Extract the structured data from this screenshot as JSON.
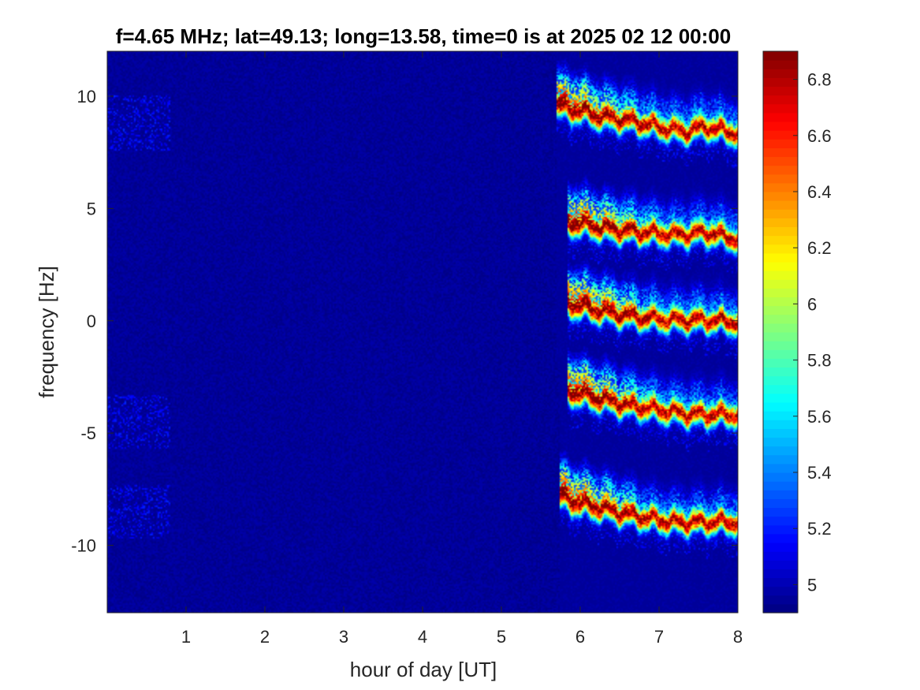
{
  "chart_data": {
    "type": "heatmap",
    "title": "f=4.65 MHz;  lat=49.13; long=13.58, time=0 is at 2025 02 12 00:00",
    "xlabel": "hour of day [UT]",
    "ylabel": "frequency [Hz]",
    "xlim": [
      0,
      8
    ],
    "ylim": [
      -13,
      12
    ],
    "xticks": [
      1,
      2,
      3,
      4,
      5,
      6,
      7,
      8
    ],
    "xtick_labels": [
      "1",
      "2",
      "3",
      "4",
      "5",
      "6",
      "7",
      "8"
    ],
    "yticks": [
      10,
      5,
      0,
      -5,
      -10
    ],
    "ytick_labels": [
      "10",
      "5",
      "0",
      "-5",
      "-10"
    ],
    "colormap": "jet",
    "clim": [
      4.9,
      6.9
    ],
    "colorbar_ticks": [
      6.8,
      6.6,
      6.4,
      6.2,
      6,
      5.8,
      5.6,
      5.4,
      5.2,
      5
    ],
    "colorbar_tick_labels": [
      "6.8",
      "6.6",
      "6.4",
      "6.2",
      "6",
      "5.8",
      "5.6",
      "5.4",
      "5.2",
      "5"
    ],
    "background_value": 4.95,
    "traces": [
      {
        "base_freq": 9.3,
        "start_hour": 5.7,
        "end_hour": 8.0,
        "points": [
          [
            5.7,
            9.5
          ],
          [
            6.0,
            9.3
          ],
          [
            6.3,
            9.0
          ],
          [
            6.6,
            8.9
          ],
          [
            7.0,
            8.6
          ],
          [
            7.3,
            8.4
          ],
          [
            7.6,
            8.6
          ],
          [
            8.0,
            8.3
          ]
        ]
      },
      {
        "base_freq": 4.2,
        "start_hour": 5.85,
        "end_hour": 8.0,
        "points": [
          [
            5.85,
            4.3
          ],
          [
            6.1,
            4.2
          ],
          [
            6.4,
            4.0
          ],
          [
            6.8,
            3.9
          ],
          [
            7.2,
            3.8
          ],
          [
            7.6,
            3.9
          ],
          [
            8.0,
            3.6
          ]
        ]
      },
      {
        "base_freq": 0.6,
        "start_hour": 5.85,
        "end_hour": 8.0,
        "points": [
          [
            5.85,
            0.7
          ],
          [
            6.1,
            0.5
          ],
          [
            6.4,
            0.3
          ],
          [
            6.8,
            0.1
          ],
          [
            7.2,
            0.0
          ],
          [
            7.6,
            0.0
          ],
          [
            8.0,
            -0.1
          ]
        ]
      },
      {
        "base_freq": -3.2,
        "start_hour": 5.85,
        "end_hour": 8.0,
        "points": [
          [
            5.85,
            -3.2
          ],
          [
            6.2,
            -3.5
          ],
          [
            6.6,
            -3.8
          ],
          [
            7.0,
            -4.0
          ],
          [
            7.4,
            -4.2
          ],
          [
            7.8,
            -4.2
          ],
          [
            8.0,
            -4.2
          ]
        ]
      },
      {
        "base_freq": -8.2,
        "start_hour": 5.75,
        "end_hour": 8.0,
        "points": [
          [
            5.75,
            -7.9
          ],
          [
            6.0,
            -8.2
          ],
          [
            6.4,
            -8.5
          ],
          [
            6.8,
            -8.8
          ],
          [
            7.2,
            -9.0
          ],
          [
            7.6,
            -9.0
          ],
          [
            8.0,
            -9.0
          ]
        ]
      }
    ]
  }
}
